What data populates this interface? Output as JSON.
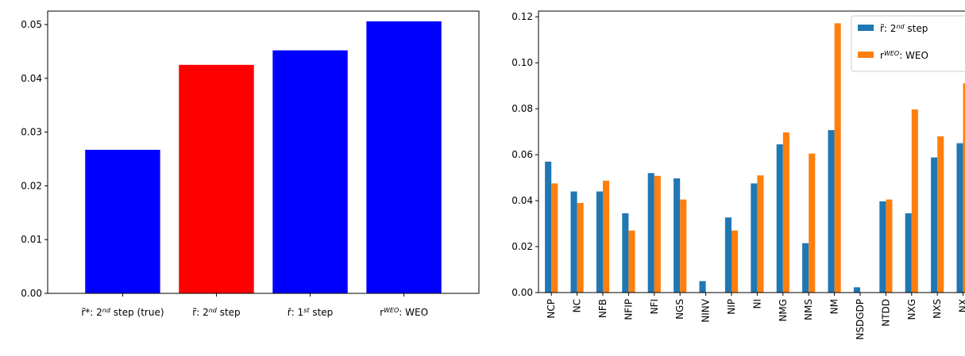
{
  "chart_data": [
    {
      "type": "bar",
      "categories": [
        "r̃*: 2nd step (true)",
        "r̃: 2nd step",
        "r̂: 1st step",
        "rWEO: WEO"
      ],
      "category_labels": [
        {
          "base": "r̃*",
          "sep": ": 2",
          "sup": "nd",
          "rest": " step (true)"
        },
        {
          "base": "r̃",
          "sep": ": 2",
          "sup": "nd",
          "rest": " step"
        },
        {
          "base": "r̂",
          "sep": ": 1",
          "sup": "st",
          "rest": " step"
        },
        {
          "base": "r",
          "sup": "WEO",
          "sep": "",
          "rest": ": WEO"
        }
      ],
      "values": [
        0.0267,
        0.0425,
        0.0452,
        0.0506
      ],
      "colors": [
        "#0000ff",
        "#ff0000",
        "#0000ff",
        "#0000ff"
      ],
      "ylim": [
        0,
        0.0525
      ],
      "yticks": [
        0.0,
        0.01,
        0.02,
        0.03,
        0.04,
        0.05
      ],
      "ytick_labels": [
        "0.00",
        "0.01",
        "0.02",
        "0.03",
        "0.04",
        "0.05"
      ],
      "grid": false
    },
    {
      "type": "bar",
      "categories": [
        "NCP",
        "NC",
        "NFB",
        "NFIP",
        "NFI",
        "NGS",
        "NINV",
        "NIP",
        "NI",
        "NMG",
        "NMS",
        "NM",
        "NSDGDP",
        "NTDD",
        "NXG",
        "NXS",
        "NX"
      ],
      "series": [
        {
          "name": "r̃: 2nd step",
          "color": "#1f77b4",
          "legend": {
            "base": "r̃",
            "sep": ": 2",
            "sup": "nd",
            "rest": " step"
          },
          "values": [
            0.057,
            0.044,
            0.044,
            0.0345,
            0.052,
            0.0497,
            0.005,
            0.0327,
            0.0475,
            0.0645,
            0.0215,
            0.0707,
            0.0023,
            0.0397,
            0.0345,
            0.0588,
            0.065
          ]
        },
        {
          "name": "rWEO: WEO",
          "color": "#ff7f0e",
          "legend": {
            "base": "r",
            "sup": "WEO",
            "sep": "",
            "rest": ": WEO"
          },
          "values": [
            0.0475,
            0.039,
            0.0487,
            0.027,
            0.0508,
            0.0405,
            0,
            0.027,
            0.051,
            0.0697,
            0.0605,
            0.1172,
            0,
            0.0405,
            0.0797,
            0.068,
            0.091
          ]
        }
      ],
      "ylim": [
        0,
        0.1225
      ],
      "yticks": [
        0.0,
        0.02,
        0.04,
        0.06,
        0.08,
        0.1,
        0.12
      ],
      "ytick_labels": [
        "0.00",
        "0.02",
        "0.04",
        "0.06",
        "0.08",
        "0.10",
        "0.12"
      ],
      "legend_position": "top-right",
      "grid": false
    }
  ]
}
